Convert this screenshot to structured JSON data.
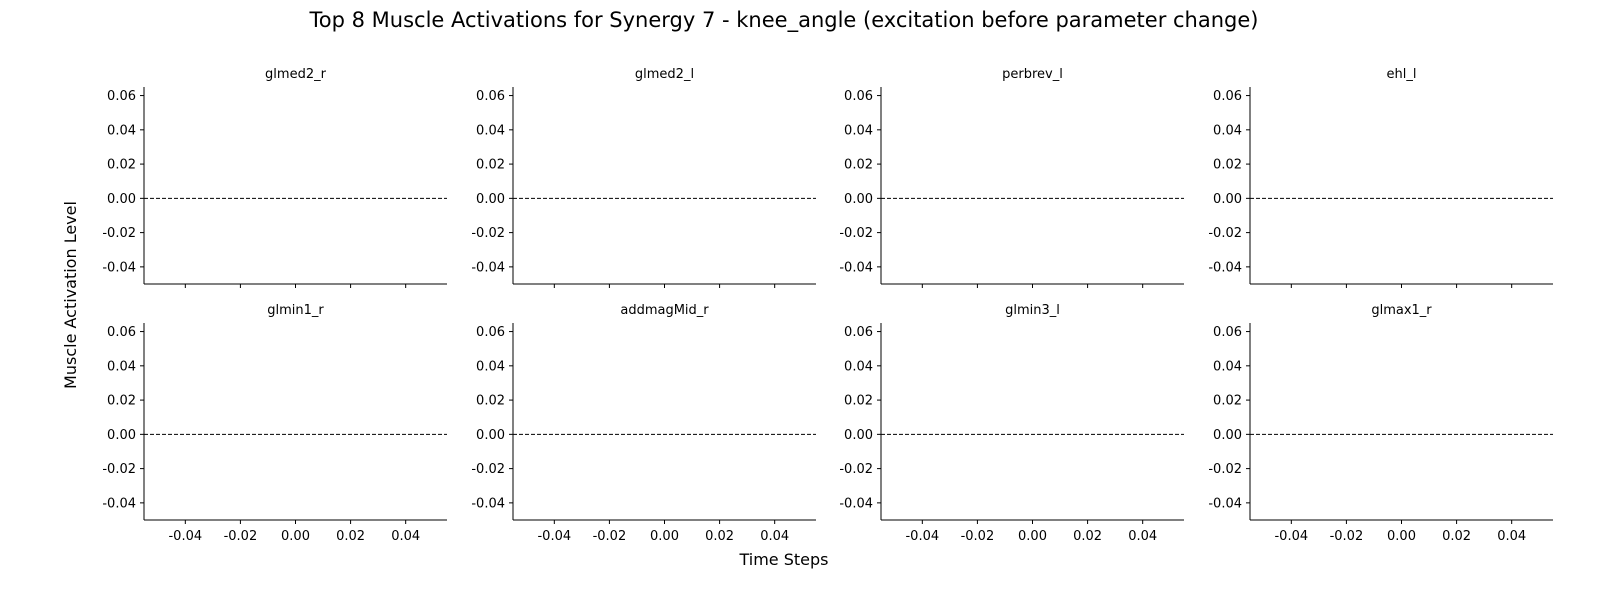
{
  "figure": {
    "title": "Top 8 Muscle Activations for Synergy 7 - knee_angle (excitation before parameter change)",
    "xlabel": "Time Steps",
    "ylabel": "Muscle Activation Level"
  },
  "chart_data": {
    "type": "line",
    "layout": "2x4 grid, shared x and y axes",
    "xlim": [
      -0.055,
      0.055
    ],
    "ylim": [
      -0.05,
      0.065
    ],
    "xticks": [
      "-0.04",
      "-0.02",
      "0.00",
      "0.02",
      "0.04"
    ],
    "xtick_values": [
      -0.04,
      -0.02,
      0.0,
      0.02,
      0.04
    ],
    "yticks": [
      "0.06",
      "0.04",
      "0.02",
      "0.00",
      "-0.02",
      "-0.04"
    ],
    "ytick_values": [
      0.06,
      0.04,
      0.02,
      0.0,
      -0.02,
      -0.04
    ],
    "reference_line": {
      "y": 0.0,
      "style": "dashed",
      "color": "#000000"
    },
    "grid": false,
    "panels": [
      {
        "title": "glmed2_r",
        "series": []
      },
      {
        "title": "glmed2_l",
        "series": []
      },
      {
        "title": "perbrev_l",
        "series": []
      },
      {
        "title": "ehl_l",
        "series": []
      },
      {
        "title": "glmin1_r",
        "series": []
      },
      {
        "title": "addmagMid_r",
        "series": []
      },
      {
        "title": "glmin3_l",
        "series": []
      },
      {
        "title": "glmax1_r",
        "series": []
      }
    ]
  }
}
